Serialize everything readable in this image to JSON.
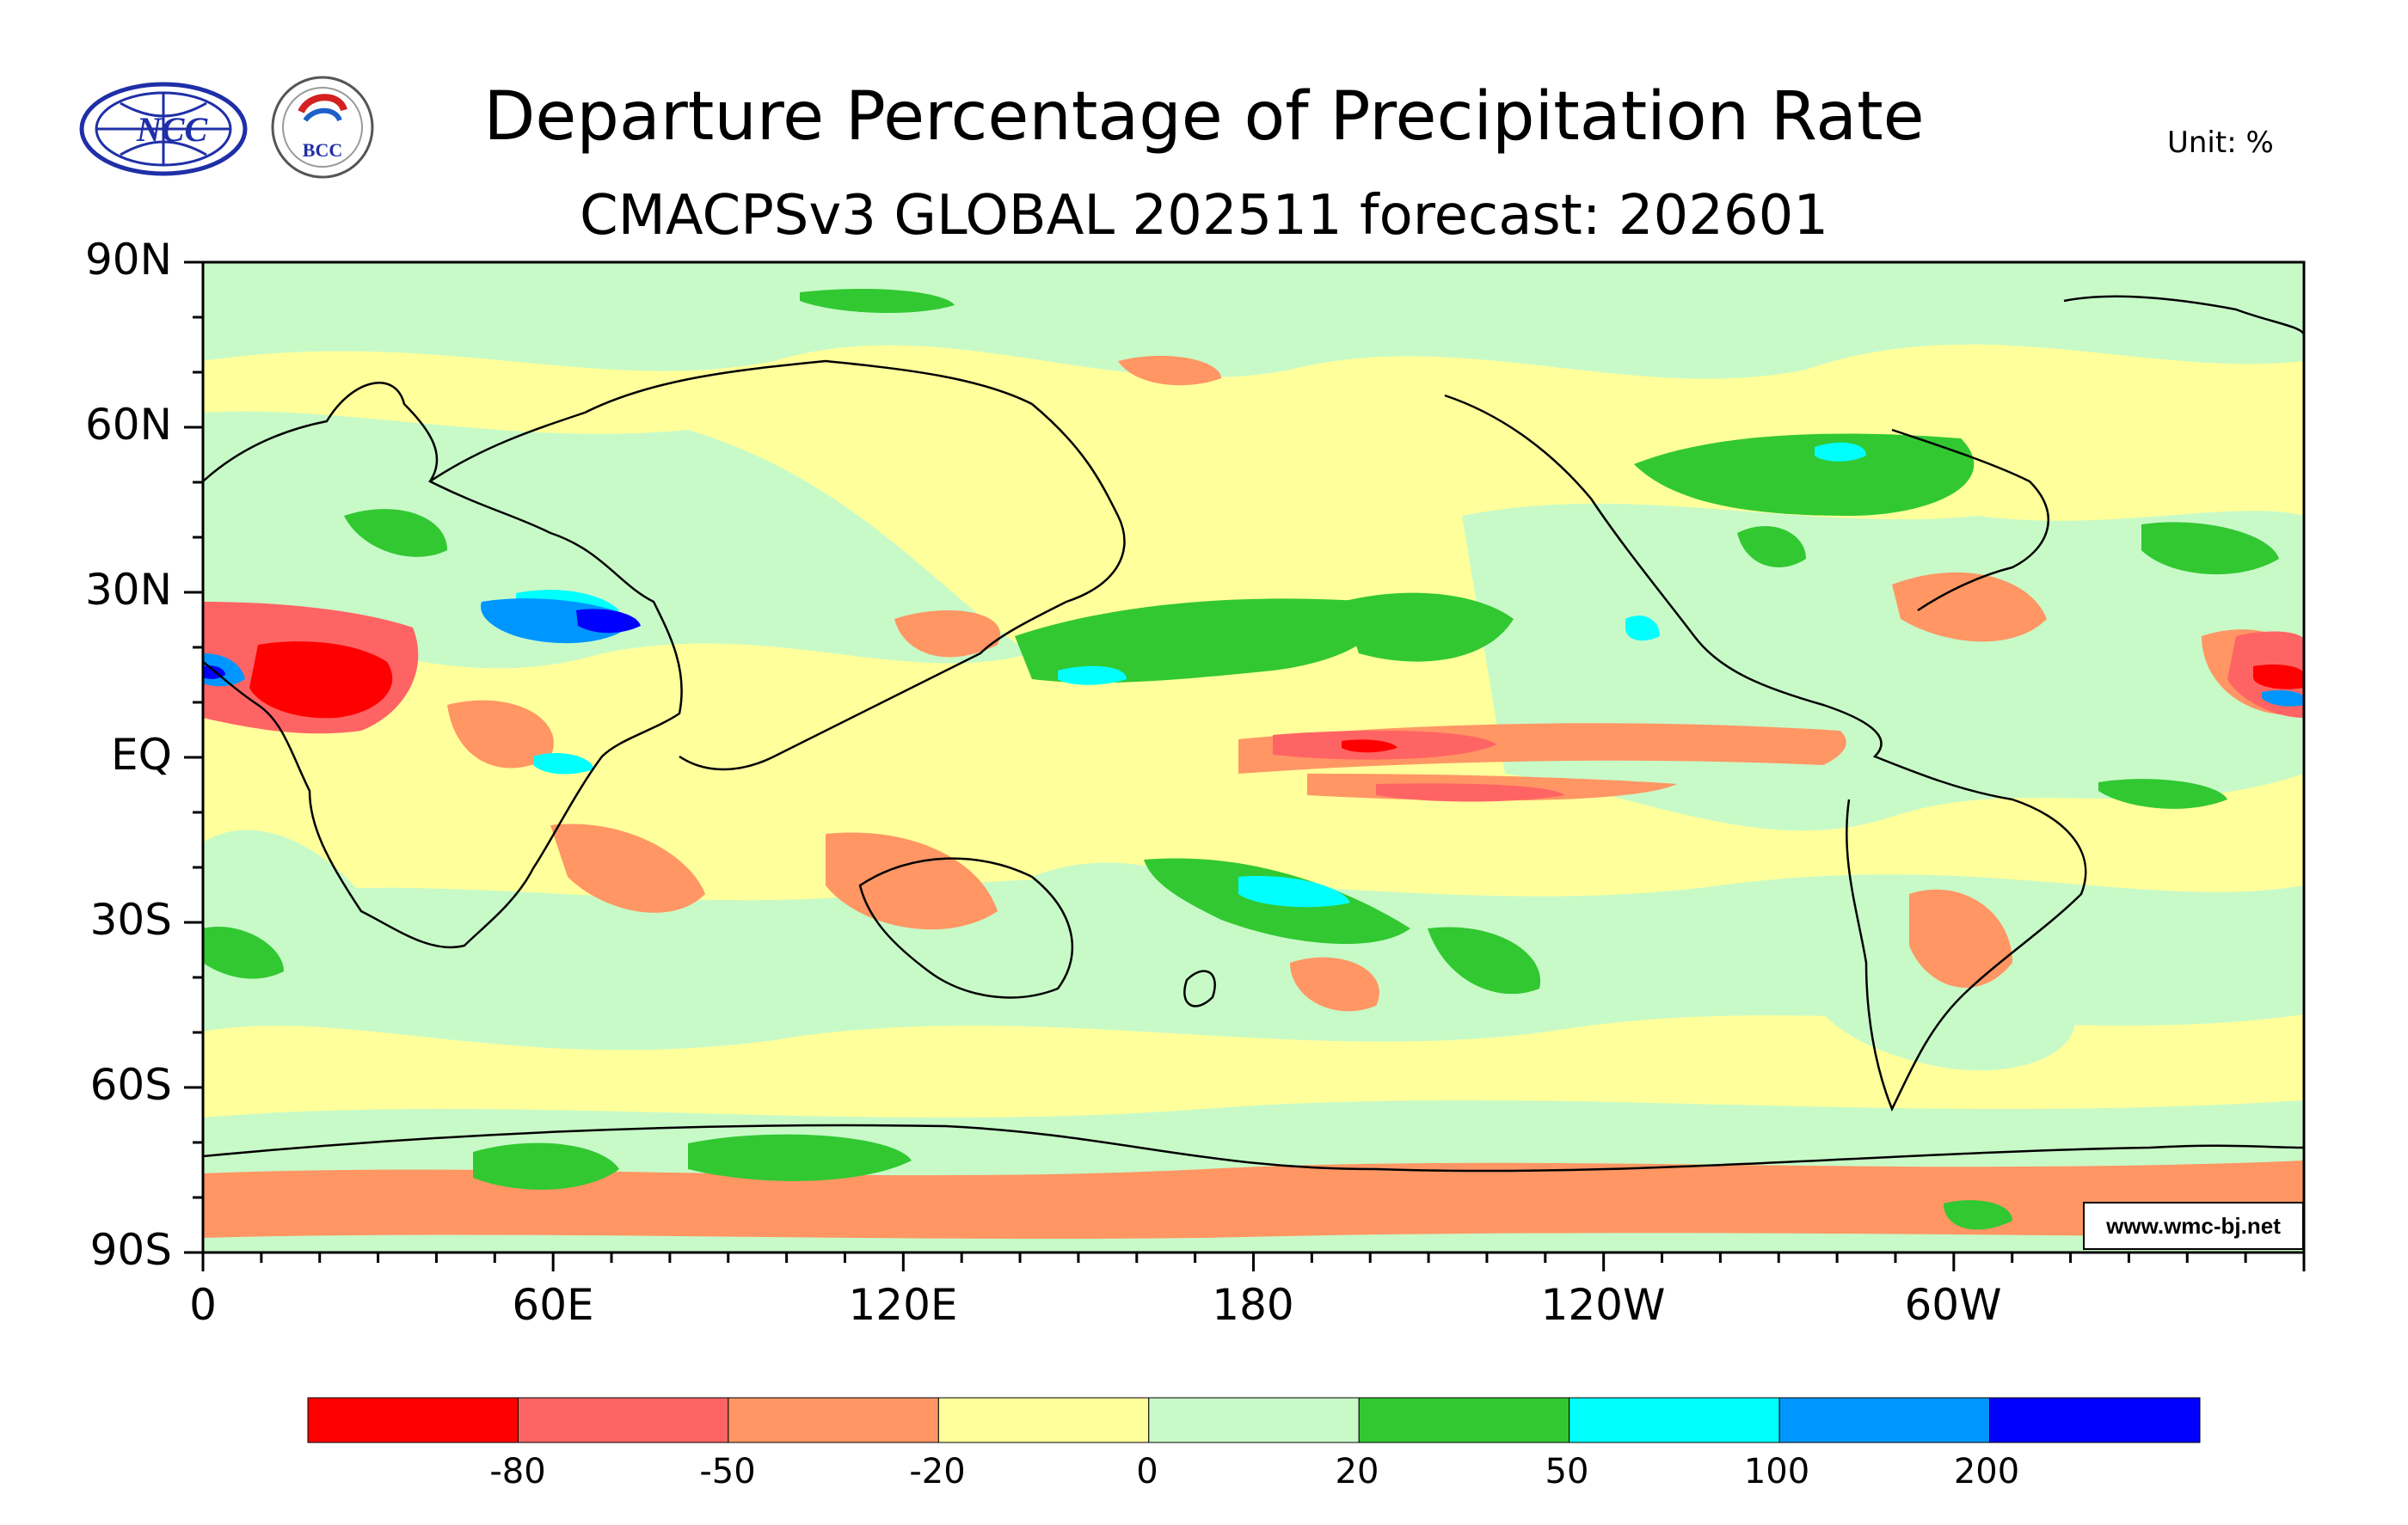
{
  "header": {
    "title": "Departure Percentage of Precipitation Rate",
    "subtitle": "CMACPSv3 GLOBAL 202511 forecast: 202601",
    "unit": "Unit: %"
  },
  "logos": {
    "ncc_text": "NCC",
    "bcc_text": "BCC"
  },
  "map": {
    "projection": "cylindrical-equidistant",
    "lon_range": [
      0,
      360
    ],
    "lat_range": [
      -90,
      90
    ],
    "lat_labels": [
      "90N",
      "60N",
      "30N",
      "EQ",
      "30S",
      "60S",
      "90S"
    ],
    "lon_labels": [
      "0",
      "60E",
      "120E",
      "180",
      "120W",
      "60W"
    ],
    "credit": "www.wmc-bj.net",
    "ocean_fill": "#ffff9c",
    "anomaly_regions": [
      {
        "name": "sahara-dry",
        "lon": 25,
        "lat": 20,
        "category": "<-80"
      },
      {
        "name": "arabia-wet",
        "lon": 60,
        "lat": 25,
        "category": "100-200"
      },
      {
        "name": "central-pacific-dry-band",
        "lon": 210,
        "lat": 2,
        "category": "-50~-20"
      },
      {
        "name": "north-pacific-wet-band",
        "lon": 165,
        "lat": 20,
        "category": "20-50"
      },
      {
        "name": "south-pacific-wet-band",
        "lon": 195,
        "lat": -25,
        "category": "50-100"
      },
      {
        "name": "canada-wet",
        "lon": 250,
        "lat": 55,
        "category": "20-50"
      },
      {
        "name": "antarctic-coast-dry",
        "lon": 180,
        "lat": -80,
        "category": "-50~-20"
      },
      {
        "name": "eastern-tropical-atlantic-wet",
        "lon": 355,
        "lat": 10,
        "category": "200+"
      }
    ]
  },
  "colorbar": {
    "colors": [
      "#ff0000",
      "#ff6464",
      "#ff9664",
      "#ffff9c",
      "#c8fac8",
      "#32c832",
      "#00ffff",
      "#0096ff",
      "#0000ff"
    ],
    "labels": [
      "-80",
      "-50",
      "-20",
      "0",
      "20",
      "50",
      "100",
      "200"
    ]
  }
}
